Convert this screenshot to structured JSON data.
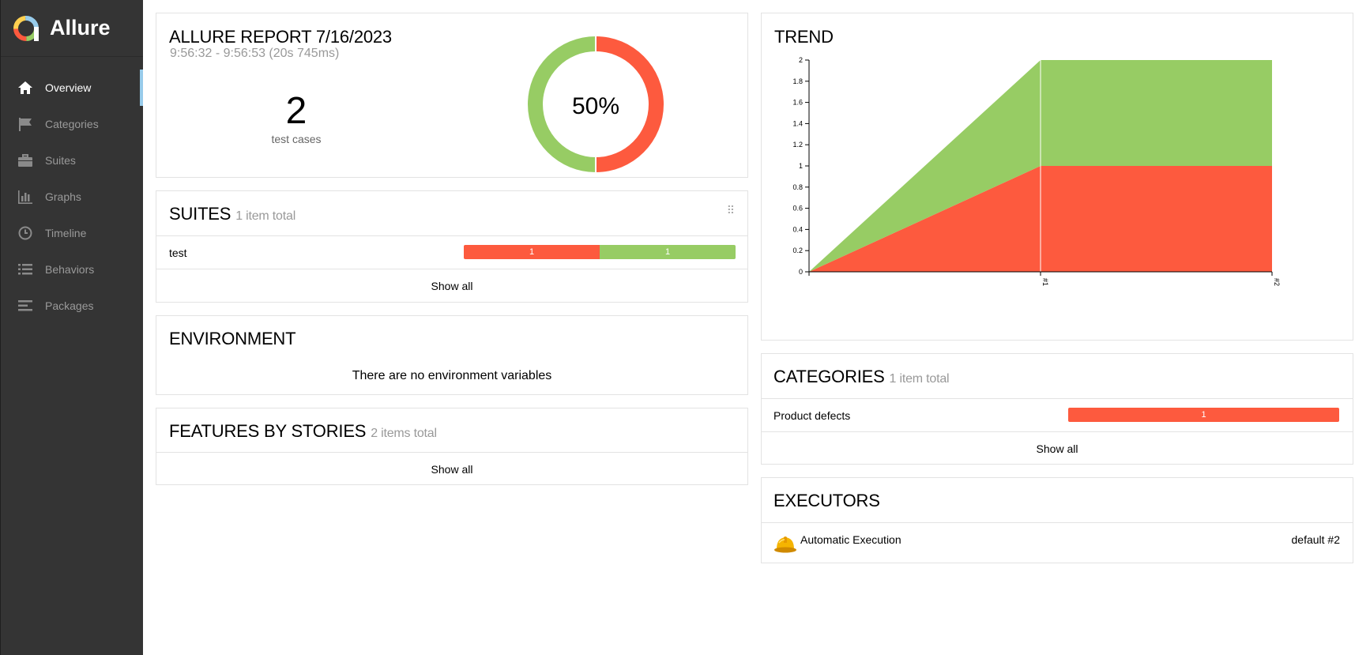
{
  "app": {
    "title": "Allure"
  },
  "sidebar": {
    "items": [
      {
        "label": "Overview",
        "icon": "home-icon",
        "active": true
      },
      {
        "label": "Categories",
        "icon": "flag-icon",
        "active": false
      },
      {
        "label": "Suites",
        "icon": "briefcase-icon",
        "active": false
      },
      {
        "label": "Graphs",
        "icon": "bar-chart-icon",
        "active": false
      },
      {
        "label": "Timeline",
        "icon": "clock-icon",
        "active": false
      },
      {
        "label": "Behaviors",
        "icon": "list-icon",
        "active": false
      },
      {
        "label": "Packages",
        "icon": "align-left-icon",
        "active": false
      }
    ]
  },
  "summary": {
    "title": "ALLURE REPORT 7/16/2023",
    "time": "9:56:32 - 9:56:53 (20s 745ms)",
    "count": "2",
    "count_label": "test cases",
    "percent": "50%",
    "passed_fraction": 0.5,
    "failed_fraction": 0.5
  },
  "suites": {
    "title": "SUITES",
    "total": "1 item total",
    "rows": [
      {
        "name": "test",
        "failed": "1",
        "passed": "1"
      }
    ],
    "show_all": "Show all"
  },
  "environment": {
    "title": "ENVIRONMENT",
    "empty": "There are no environment variables"
  },
  "features": {
    "title": "FEATURES BY STORIES",
    "total": "2 items total",
    "show_all": "Show all"
  },
  "trend": {
    "title": "TREND",
    "chart_data": {
      "type": "area",
      "x": [
        "#1",
        "#2"
      ],
      "series": [
        {
          "values": [
            1,
            1
          ],
          "color": "#fd5a3e"
        },
        {
          "values": [
            1,
            1
          ],
          "color": "#97cc64"
        }
      ],
      "ylim": [
        0,
        2
      ],
      "yticks": [
        "0",
        "0.2",
        "0.4",
        "0.6",
        "0.8",
        "1",
        "1.2",
        "1.4",
        "1.6",
        "1.8",
        "2"
      ]
    }
  },
  "categories": {
    "title": "CATEGORIES",
    "total": "1 item total",
    "rows": [
      {
        "name": "Product defects",
        "value": "1"
      }
    ],
    "show_all": "Show all"
  },
  "executors": {
    "title": "EXECUTORS",
    "rows": [
      {
        "name": "Automatic Execution",
        "build": "default #2",
        "icon": "hardhat-icon"
      }
    ]
  },
  "colors": {
    "failed": "#fd5a3e",
    "passed": "#97cc64",
    "sidebar": "#343434",
    "accent": "#97cbea"
  }
}
